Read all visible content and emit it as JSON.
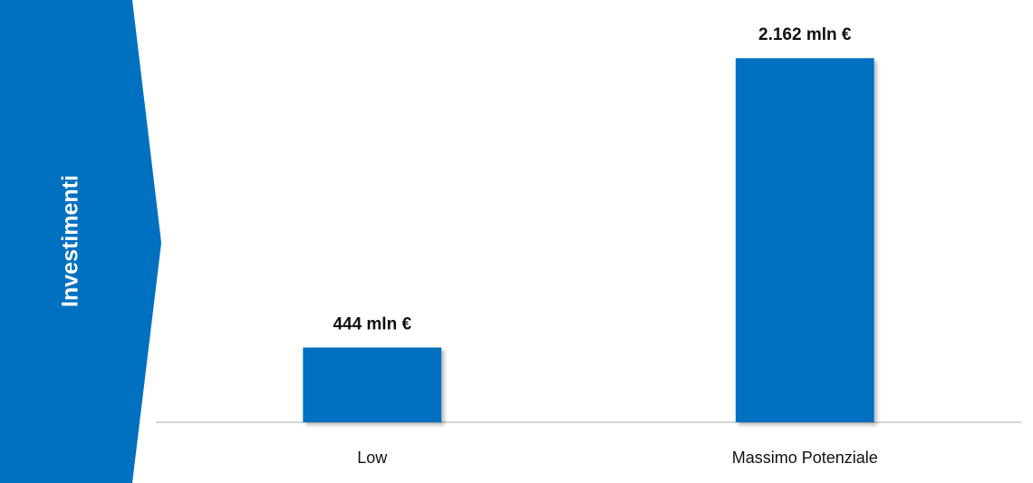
{
  "banner": {
    "label": "Investimenti",
    "color": "#0070C0"
  },
  "chart_data": {
    "type": "bar",
    "categories": [
      "Low",
      "Massimo Potenziale"
    ],
    "values": [
      444,
      2162
    ],
    "value_labels": [
      "444 mln €",
      "2.162 mln €"
    ],
    "unit": "mln €",
    "title": "",
    "xlabel": "",
    "ylabel": "",
    "ylim": [
      0,
      2400
    ],
    "grid": false,
    "legend": "none",
    "bar_color": "#0070C0"
  }
}
